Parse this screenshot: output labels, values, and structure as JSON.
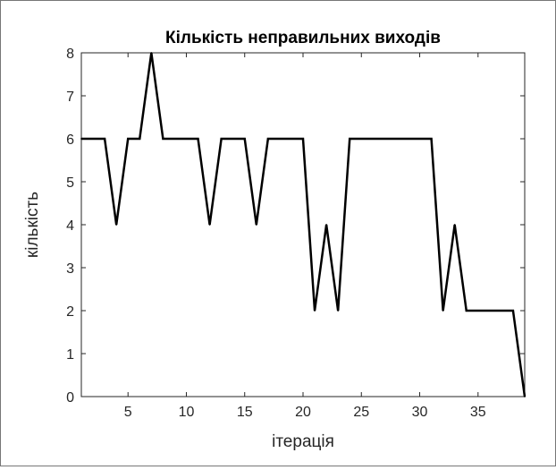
{
  "chart_data": {
    "type": "line",
    "title": "Кількість неправильних виходів",
    "xlabel": "ітерація",
    "ylabel": "кількість",
    "xlim": [
      1,
      39
    ],
    "ylim": [
      0,
      8
    ],
    "xticks": [
      5,
      10,
      15,
      20,
      25,
      30,
      35
    ],
    "yticks": [
      0,
      1,
      2,
      3,
      4,
      5,
      6,
      7,
      8
    ],
    "grid": false,
    "legend": "none",
    "line_color": "#000000",
    "series": [
      {
        "x": [
          1,
          2,
          3,
          4,
          5,
          6,
          7,
          8,
          9,
          10,
          11,
          12,
          13,
          14,
          15,
          16,
          17,
          18,
          19,
          20,
          21,
          22,
          23,
          24,
          25,
          26,
          27,
          28,
          29,
          30,
          31,
          32,
          33,
          34,
          35,
          36,
          37,
          38,
          39
        ],
        "values": [
          6,
          6,
          6,
          4,
          6,
          6,
          8,
          6,
          6,
          6,
          6,
          4,
          6,
          6,
          6,
          4,
          6,
          6,
          6,
          6,
          2,
          4,
          2,
          6,
          6,
          6,
          6,
          6,
          6,
          6,
          6,
          2,
          4,
          2,
          2,
          2,
          2,
          2,
          0
        ]
      }
    ]
  }
}
